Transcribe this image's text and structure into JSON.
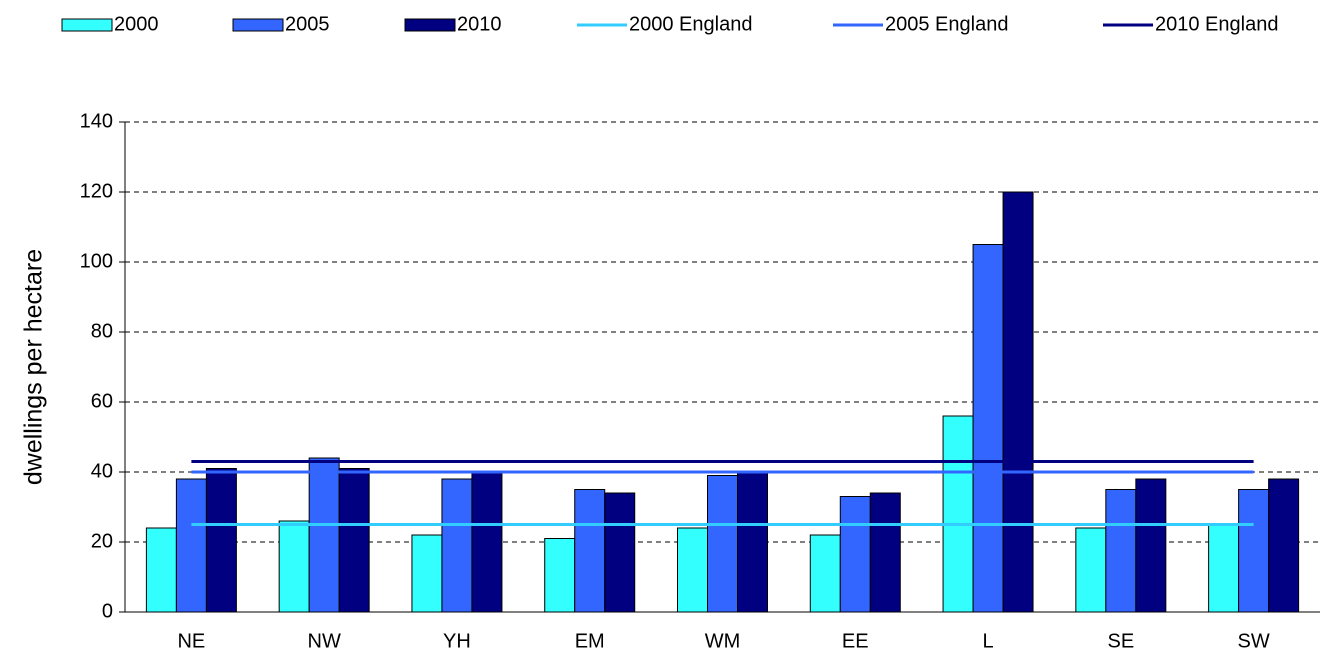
{
  "chart_data": {
    "type": "bar",
    "y_label": "dwellings per hectare",
    "categories": [
      "NE",
      "NW",
      "YH",
      "EM",
      "WM",
      "EE",
      "L",
      "SE",
      "SW"
    ],
    "series": [
      {
        "name": "2000",
        "color": "#33ffff",
        "values": [
          24,
          26,
          22,
          21,
          24,
          22,
          56,
          24,
          25
        ]
      },
      {
        "name": "2005",
        "color": "#3366ff",
        "values": [
          38,
          44,
          38,
          35,
          39,
          33,
          105,
          35,
          35
        ]
      },
      {
        "name": "2010",
        "color": "#000080",
        "values": [
          41,
          41,
          40,
          34,
          40,
          34,
          120,
          38,
          38
        ]
      }
    ],
    "reference_lines": [
      {
        "name": "2000 England",
        "color": "#33ccff",
        "value": 25
      },
      {
        "name": "2005 England",
        "color": "#3366ff",
        "value": 40
      },
      {
        "name": "2010 England",
        "color": "#000080",
        "value": 43
      }
    ],
    "ylim": [
      0,
      140
    ],
    "yticks": [
      0,
      20,
      40,
      60,
      80,
      100,
      120,
      140
    ],
    "grid": true
  }
}
